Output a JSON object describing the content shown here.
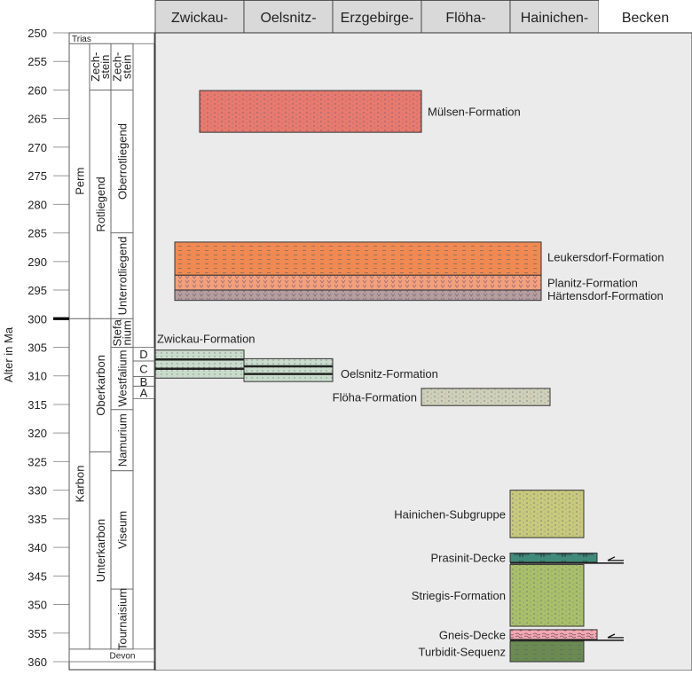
{
  "axis": {
    "label": "Alter in Ma",
    "min": 250,
    "max": 360,
    "step": 5,
    "major": [
      300
    ]
  },
  "basins": [
    {
      "label": "Zwickau-",
      "shaded": true
    },
    {
      "label": "Oelsnitz-",
      "shaded": true
    },
    {
      "label": "Erzgebirge-",
      "shaded": true
    },
    {
      "label": "Flöha-",
      "shaded": true
    },
    {
      "label": "Hainichen-",
      "shaded": true
    },
    {
      "label": "Becken",
      "shaded": false
    }
  ],
  "stratigraphy": [
    {
      "col": 0,
      "span": 4,
      "label": "Trias",
      "from": 250,
      "to": 251.9,
      "horizontal": true
    },
    {
      "col": 0,
      "label": "Perm",
      "from": 251.9,
      "to": 300
    },
    {
      "col": 0,
      "label": "Karbon",
      "from": 300,
      "to": 357.8
    },
    {
      "col": 0,
      "span": 4,
      "label": "Devon",
      "from": 357.8,
      "to": 360,
      "horizontal": true
    },
    {
      "col": 1,
      "label": "Zech-\nstein",
      "from": 251.9,
      "to": 260
    },
    {
      "col": 1,
      "label": "Rotliegend",
      "from": 260,
      "to": 300
    },
    {
      "col": 1,
      "label": "Oberkarbon",
      "from": 300,
      "to": 323.3
    },
    {
      "col": 1,
      "label": "Unterkarbon",
      "from": 323.3,
      "to": 357.8
    },
    {
      "col": 2,
      "label": "Zech-\nstein",
      "from": 251.9,
      "to": 260
    },
    {
      "col": 2,
      "label": "Oberrotliegend",
      "from": 260,
      "to": 285
    },
    {
      "col": 2,
      "label": "Unterrotliegend",
      "from": 285,
      "to": 300
    },
    {
      "col": 2,
      "label": "Stefa\nnium",
      "from": 300,
      "to": 305
    },
    {
      "col": 2,
      "label": "Westfalium",
      "from": 305,
      "to": 315.9
    },
    {
      "col": 2,
      "label": "Namurium",
      "from": 315.9,
      "to": 326.6
    },
    {
      "col": 2,
      "label": "Viseum",
      "from": 326.6,
      "to": 347.3
    },
    {
      "col": 2,
      "label": "Tournaisium",
      "from": 347.3,
      "to": 357.8
    },
    {
      "col": 3,
      "label": "D",
      "from": 305,
      "to": 307.4,
      "horizontal": true
    },
    {
      "col": 3,
      "label": "C",
      "from": 307.4,
      "to": 310.1,
      "horizontal": true
    },
    {
      "col": 3,
      "label": "B",
      "from": 310.1,
      "to": 311.8,
      "horizontal": true
    },
    {
      "col": 3,
      "label": "A",
      "from": 311.8,
      "to": 314,
      "horizontal": true
    }
  ],
  "formations": [
    {
      "label": "Mülsen-Formation",
      "from": 260.1,
      "to": 267.4,
      "basin_start": 0.5,
      "basin_end": 3.0,
      "color": "#e87a6e",
      "pattern": "dots",
      "label_side": "right"
    },
    {
      "label": "Leukersdorf-Formation",
      "from": 286.6,
      "to": 292.4,
      "basin_start": 0.22,
      "basin_end": 4.35,
      "color": "#f08a52",
      "pattern": "dashes",
      "label_side": "right"
    },
    {
      "label": "Planitz-Formation",
      "from": 292.4,
      "to": 295.0,
      "basin_start": 0.22,
      "basin_end": 4.35,
      "color": "#f3a07c",
      "pattern": "vees",
      "label_side": "right"
    },
    {
      "label": "Härtensdorf-Formation",
      "from": 295.0,
      "to": 296.8,
      "basin_start": 0.22,
      "basin_end": 4.35,
      "color": "#b49e9e",
      "pattern": "vees",
      "label_side": "right"
    },
    {
      "label": "Zwickau-Formation",
      "from": 305.5,
      "to": 310.4,
      "basin_start": 0.0,
      "basin_end": 1.0,
      "color": "#c9dccb",
      "pattern": "coal",
      "label_side": "top"
    },
    {
      "label": "Oelsnitz-Formation",
      "from": 307.0,
      "to": 311.0,
      "basin_start": 1.0,
      "basin_end": 2.0,
      "color": "#c9dccb",
      "pattern": "coal",
      "label_side": "right"
    },
    {
      "label": "Flöha-Formation",
      "from": 312.2,
      "to": 315.2,
      "basin_start": 3.0,
      "basin_end": 4.45,
      "color": "#cfd0b8",
      "pattern": "dots",
      "label_side": "left"
    },
    {
      "label": "Hainichen-Subgruppe",
      "from": 330.0,
      "to": 338.3,
      "basin_start": 4.0,
      "basin_end": 4.83,
      "color": "#c8c97c",
      "pattern": "dots",
      "label_side": "left"
    },
    {
      "label": "Prasinit-Decke",
      "from": 341.0,
      "to": 342.6,
      "basin_start": 4.0,
      "basin_end": 4.98,
      "color": "#3f8a78",
      "pattern": "crosses",
      "label_side": "left",
      "thrust": true
    },
    {
      "label": "Striegis-Formation",
      "from": 343.0,
      "to": 353.8,
      "basin_start": 4.0,
      "basin_end": 4.83,
      "color": "#aabf6a",
      "pattern": "dots",
      "label_side": "left"
    },
    {
      "label": "Gneis-Decke",
      "from": 354.4,
      "to": 356.1,
      "basin_start": 4.0,
      "basin_end": 4.98,
      "color": "#f2a8b2",
      "pattern": "waves",
      "label_side": "left",
      "thrust": true
    },
    {
      "label": "Turbidit-Sequenz",
      "from": 356.4,
      "to": 360.0,
      "basin_start": 4.0,
      "basin_end": 4.83,
      "color": "#6b8a52",
      "pattern": "dashes",
      "label_side": "left"
    }
  ],
  "colors": {
    "panel": "#ebebeb",
    "header": "#d9d9d9",
    "line": "#333333"
  }
}
